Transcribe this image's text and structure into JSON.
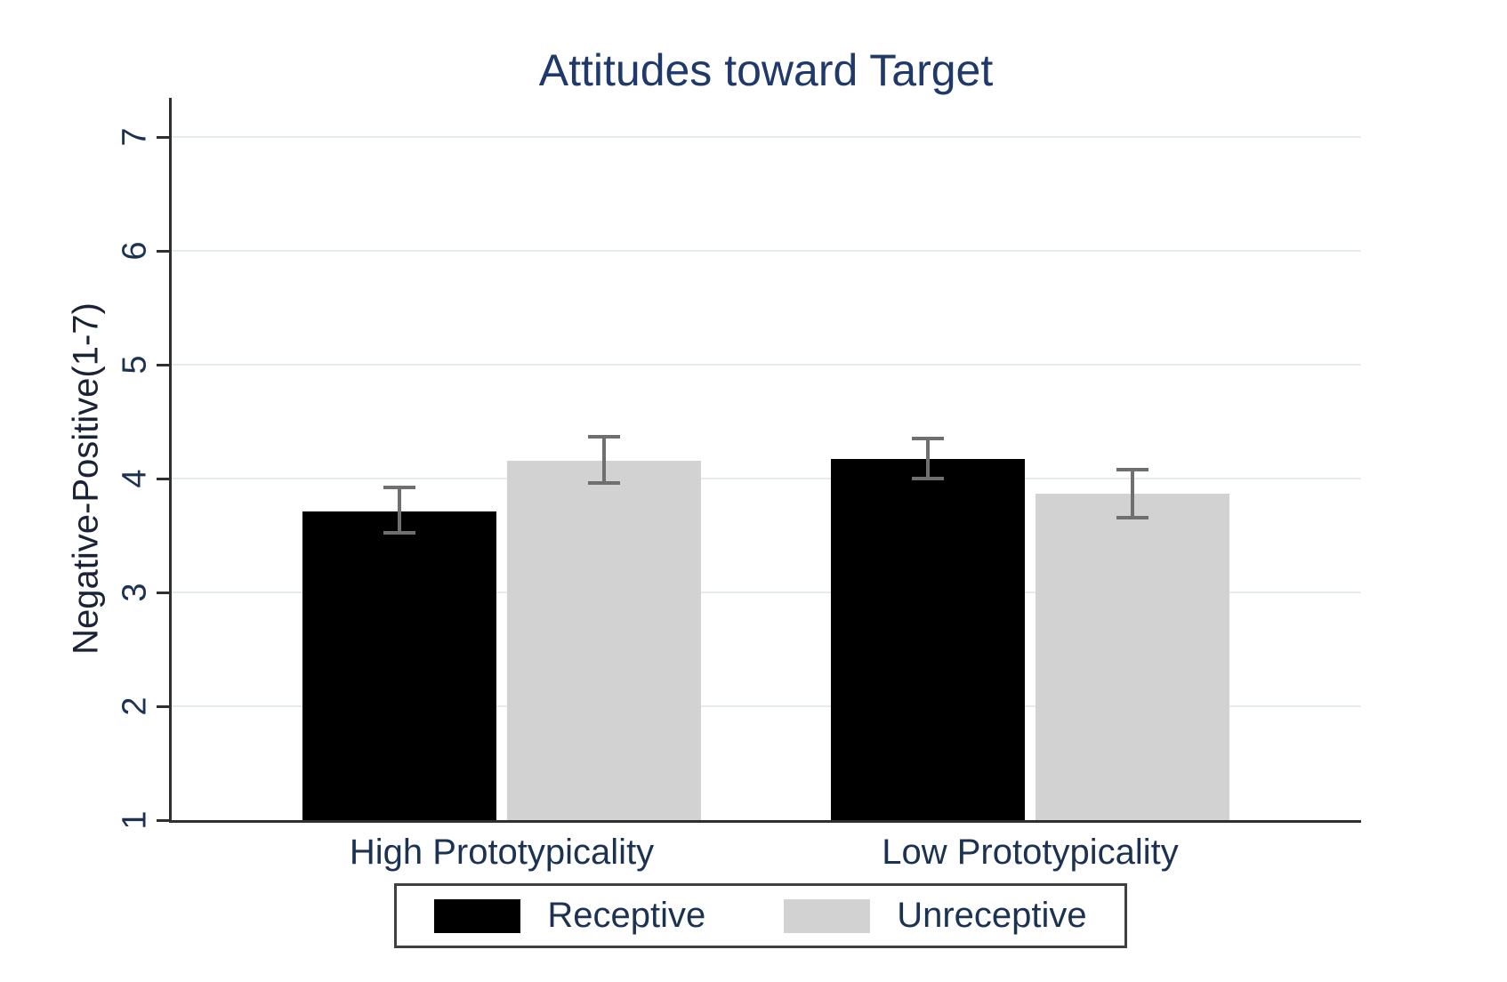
{
  "chart_data": {
    "type": "bar",
    "title": "Attitudes toward Target",
    "ylabel": "Negative-Positive(1-7)",
    "xlabel": "",
    "ylim": [
      1,
      7
    ],
    "yticks": [
      1,
      2,
      3,
      4,
      5,
      6,
      7
    ],
    "grid": true,
    "legend_position": "bottom",
    "categories": [
      "High Prototypicality",
      "Low Prototypicality"
    ],
    "series": [
      {
        "name": "Receptive",
        "color": "#000000",
        "values": [
          3.71,
          4.17
        ],
        "ci_low": [
          3.52,
          4.0
        ],
        "ci_high": [
          3.92,
          4.35
        ]
      },
      {
        "name": "Unreceptive",
        "color": "#d2d2d2",
        "values": [
          4.16,
          3.87
        ],
        "ci_low": [
          3.96,
          3.66
        ],
        "ci_high": [
          4.37,
          4.08
        ]
      }
    ],
    "colors": {
      "title_text": "#20396b",
      "tick_text": "#1c3252",
      "gridline": "#e3edf0",
      "axis_line": "#2f2f2f",
      "error_bar": "#6f6f6f",
      "background": "#ffffff"
    }
  }
}
